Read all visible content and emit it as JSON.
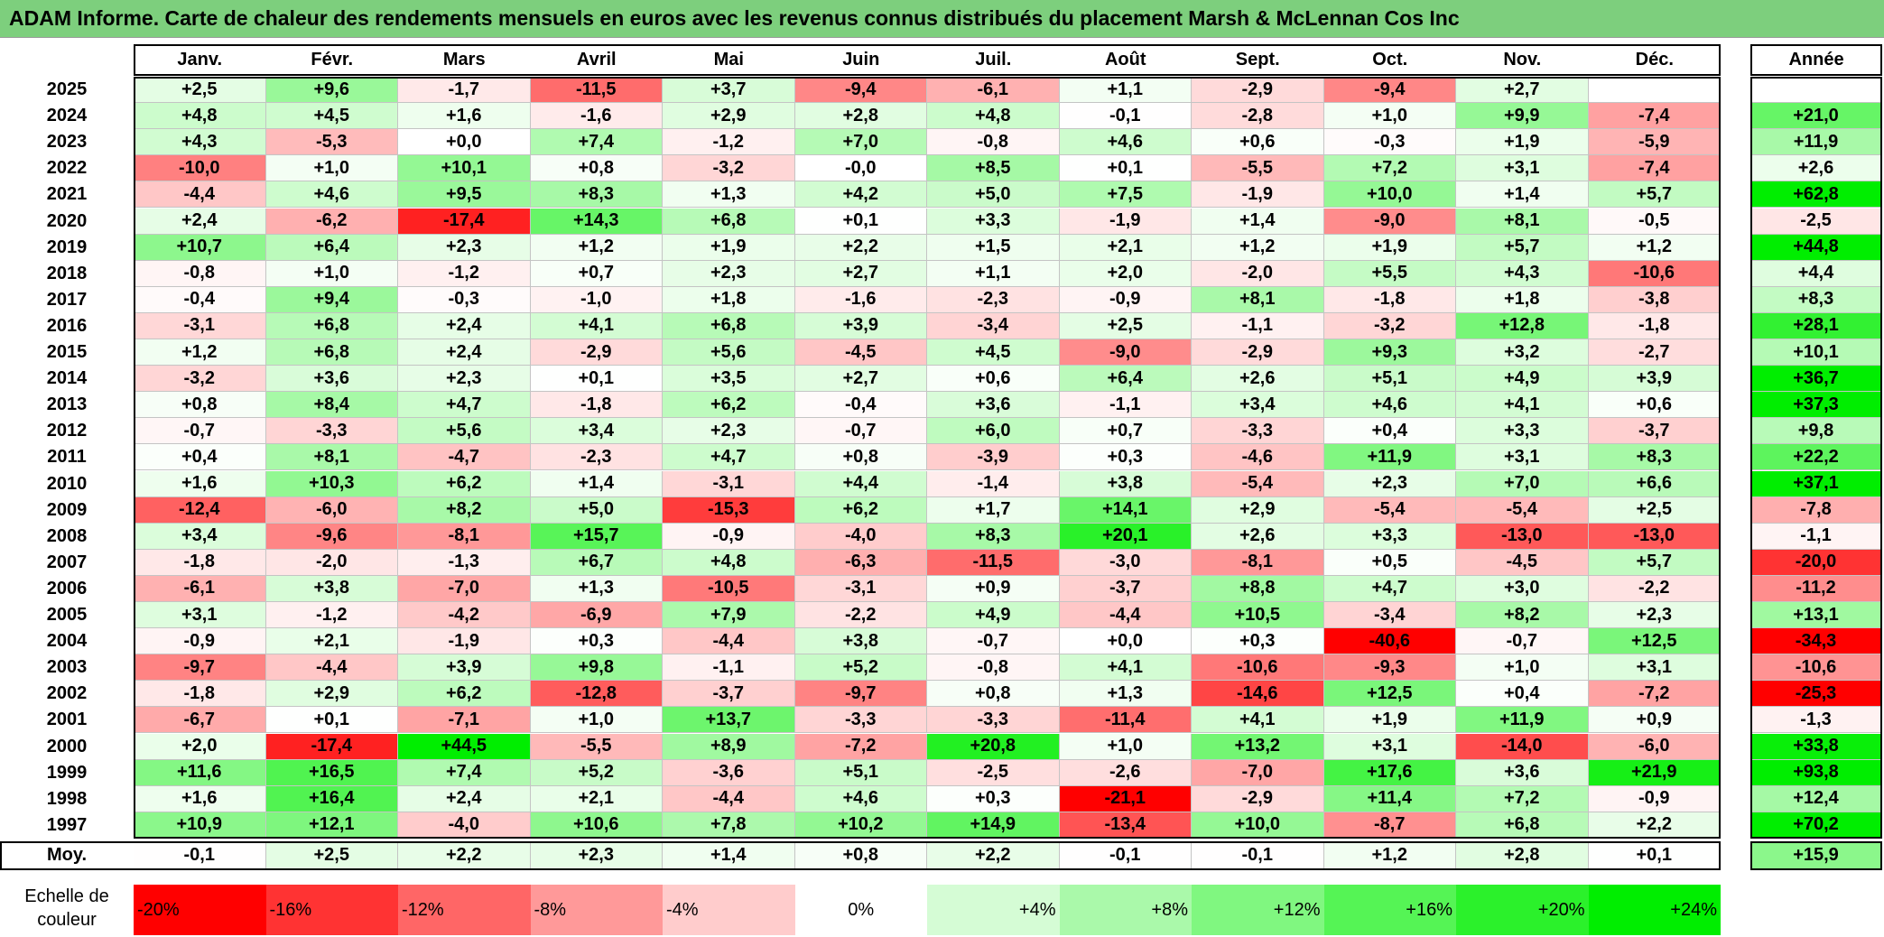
{
  "title": "ADAM Informe. Carte de chaleur des rendements mensuels en euros avec les revenus connus distribués du placement Marsh & McLennan Cos Inc",
  "chart_data": {
    "type": "heatmap",
    "months": [
      "Janv.",
      "Févr.",
      "Mars",
      "Avril",
      "Mai",
      "Juin",
      "Juil.",
      "Août",
      "Sept.",
      "Oct.",
      "Nov.",
      "Déc."
    ],
    "annual_header": "Année",
    "rows": [
      {
        "year": "2025",
        "values": [
          "+2,5",
          "+9,6",
          "-1,7",
          "-11,5",
          "+3,7",
          "-9,4",
          "-6,1",
          "+1,1",
          "-2,9",
          "-9,4",
          "+2,7",
          ""
        ],
        "annual": ""
      },
      {
        "year": "2024",
        "values": [
          "+4,8",
          "+4,5",
          "+1,6",
          "-1,6",
          "+2,9",
          "+2,8",
          "+4,8",
          "-0,1",
          "-2,8",
          "+1,0",
          "+9,9",
          "-7,4"
        ],
        "annual": "+21,0"
      },
      {
        "year": "2023",
        "values": [
          "+4,3",
          "-5,3",
          "+0,0",
          "+7,4",
          "-1,2",
          "+7,0",
          "-0,8",
          "+4,6",
          "+0,6",
          "-0,3",
          "+1,9",
          "-5,9"
        ],
        "annual": "+11,9"
      },
      {
        "year": "2022",
        "values": [
          "-10,0",
          "+1,0",
          "+10,1",
          "+0,8",
          "-3,2",
          "-0,0",
          "+8,5",
          "+0,1",
          "-5,5",
          "+7,2",
          "+3,1",
          "-7,4"
        ],
        "annual": "+2,6"
      },
      {
        "year": "2021",
        "values": [
          "-4,4",
          "+4,6",
          "+9,5",
          "+8,3",
          "+1,3",
          "+4,2",
          "+5,0",
          "+7,5",
          "-1,9",
          "+10,0",
          "+1,4",
          "+5,7"
        ],
        "annual": "+62,8"
      },
      {
        "year": "2020",
        "values": [
          "+2,4",
          "-6,2",
          "-17,4",
          "+14,3",
          "+6,8",
          "+0,1",
          "+3,3",
          "-1,9",
          "+1,4",
          "-9,0",
          "+8,1",
          "-0,5"
        ],
        "annual": "-2,5"
      },
      {
        "year": "2019",
        "values": [
          "+10,7",
          "+6,4",
          "+2,3",
          "+1,2",
          "+1,9",
          "+2,2",
          "+1,5",
          "+2,1",
          "+1,2",
          "+1,9",
          "+5,7",
          "+1,2"
        ],
        "annual": "+44,8"
      },
      {
        "year": "2018",
        "values": [
          "-0,8",
          "+1,0",
          "-1,2",
          "+0,7",
          "+2,3",
          "+2,7",
          "+1,1",
          "+2,0",
          "-2,0",
          "+5,5",
          "+4,3",
          "-10,6"
        ],
        "annual": "+4,4"
      },
      {
        "year": "2017",
        "values": [
          "-0,4",
          "+9,4",
          "-0,3",
          "-1,0",
          "+1,8",
          "-1,6",
          "-2,3",
          "-0,9",
          "+8,1",
          "-1,8",
          "+1,8",
          "-3,8"
        ],
        "annual": "+8,3"
      },
      {
        "year": "2016",
        "values": [
          "-3,1",
          "+6,8",
          "+2,4",
          "+4,1",
          "+6,8",
          "+3,9",
          "-3,4",
          "+2,5",
          "-1,1",
          "-3,2",
          "+12,8",
          "-1,8"
        ],
        "annual": "+28,1"
      },
      {
        "year": "2015",
        "values": [
          "+1,2",
          "+6,8",
          "+2,4",
          "-2,9",
          "+5,6",
          "-4,5",
          "+4,5",
          "-9,0",
          "-2,9",
          "+9,3",
          "+3,2",
          "-2,7"
        ],
        "annual": "+10,1"
      },
      {
        "year": "2014",
        "values": [
          "-3,2",
          "+3,6",
          "+2,3",
          "+0,1",
          "+3,5",
          "+2,7",
          "+0,6",
          "+6,4",
          "+2,6",
          "+5,1",
          "+4,9",
          "+3,9"
        ],
        "annual": "+36,7"
      },
      {
        "year": "2013",
        "values": [
          "+0,8",
          "+8,4",
          "+4,7",
          "-1,8",
          "+6,2",
          "-0,4",
          "+3,6",
          "-1,1",
          "+3,4",
          "+4,6",
          "+4,1",
          "+0,6"
        ],
        "annual": "+37,3"
      },
      {
        "year": "2012",
        "values": [
          "-0,7",
          "-3,3",
          "+5,6",
          "+3,4",
          "+2,3",
          "-0,7",
          "+6,0",
          "+0,7",
          "-3,3",
          "+0,4",
          "+3,3",
          "-3,7"
        ],
        "annual": "+9,8"
      },
      {
        "year": "2011",
        "values": [
          "+0,4",
          "+8,1",
          "-4,7",
          "-2,3",
          "+4,7",
          "+0,8",
          "-3,9",
          "+0,3",
          "-4,6",
          "+11,9",
          "+3,1",
          "+8,3"
        ],
        "annual": "+22,2"
      },
      {
        "year": "2010",
        "values": [
          "+1,6",
          "+10,3",
          "+6,2",
          "+1,4",
          "-3,1",
          "+4,4",
          "-1,4",
          "+3,8",
          "-5,4",
          "+2,3",
          "+7,0",
          "+6,6"
        ],
        "annual": "+37,1"
      },
      {
        "year": "2009",
        "values": [
          "-12,4",
          "-6,0",
          "+8,2",
          "+5,0",
          "-15,3",
          "+6,2",
          "+1,7",
          "+14,1",
          "+2,9",
          "-5,4",
          "-5,4",
          "+2,5"
        ],
        "annual": "-7,8"
      },
      {
        "year": "2008",
        "values": [
          "+3,4",
          "-9,6",
          "-8,1",
          "+15,7",
          "-0,9",
          "-4,0",
          "+8,3",
          "+20,1",
          "+2,6",
          "+3,3",
          "-13,0",
          "-13,0"
        ],
        "annual": "-1,1"
      },
      {
        "year": "2007",
        "values": [
          "-1,8",
          "-2,0",
          "-1,3",
          "+6,7",
          "+4,8",
          "-6,3",
          "-11,5",
          "-3,0",
          "-8,1",
          "+0,5",
          "-4,5",
          "+5,7"
        ],
        "annual": "-20,0"
      },
      {
        "year": "2006",
        "values": [
          "-6,1",
          "+3,8",
          "-7,0",
          "+1,3",
          "-10,5",
          "-3,1",
          "+0,9",
          "-3,7",
          "+8,8",
          "+4,7",
          "+3,0",
          "-2,2"
        ],
        "annual": "-11,2"
      },
      {
        "year": "2005",
        "values": [
          "+3,1",
          "-1,2",
          "-4,2",
          "-6,9",
          "+7,9",
          "-2,2",
          "+4,9",
          "-4,4",
          "+10,5",
          "-3,4",
          "+8,2",
          "+2,3"
        ],
        "annual": "+13,1"
      },
      {
        "year": "2004",
        "values": [
          "-0,9",
          "+2,1",
          "-1,9",
          "+0,3",
          "-4,4",
          "+3,8",
          "-0,7",
          "+0,0",
          "+0,3",
          "-40,6",
          "-0,7",
          "+12,5"
        ],
        "annual": "-34,3"
      },
      {
        "year": "2003",
        "values": [
          "-9,7",
          "-4,4",
          "+3,9",
          "+9,8",
          "-1,1",
          "+5,2",
          "-0,8",
          "+4,1",
          "-10,6",
          "-9,3",
          "+1,0",
          "+3,1"
        ],
        "annual": "-10,6"
      },
      {
        "year": "2002",
        "values": [
          "-1,8",
          "+2,9",
          "+6,2",
          "-12,8",
          "-3,7",
          "-9,7",
          "+0,8",
          "+1,3",
          "-14,6",
          "+12,5",
          "+0,4",
          "-7,2"
        ],
        "annual": "-25,3"
      },
      {
        "year": "2001",
        "values": [
          "-6,7",
          "+0,1",
          "-7,1",
          "+1,0",
          "+13,7",
          "-3,3",
          "-3,3",
          "-11,4",
          "+4,1",
          "+1,9",
          "+11,9",
          "+0,9"
        ],
        "annual": "-1,3"
      },
      {
        "year": "2000",
        "values": [
          "+2,0",
          "-17,4",
          "+44,5",
          "-5,5",
          "+8,9",
          "-7,2",
          "+20,8",
          "+1,0",
          "+13,2",
          "+3,1",
          "-14,0",
          "-6,0"
        ],
        "annual": "+33,8"
      },
      {
        "year": "1999",
        "values": [
          "+11,6",
          "+16,5",
          "+7,4",
          "+5,2",
          "-3,6",
          "+5,1",
          "-2,5",
          "-2,6",
          "-7,0",
          "+17,6",
          "+3,6",
          "+21,9"
        ],
        "annual": "+93,8"
      },
      {
        "year": "1998",
        "values": [
          "+1,6",
          "+16,4",
          "+2,4",
          "+2,1",
          "-4,4",
          "+4,6",
          "+0,3",
          "-21,1",
          "-2,9",
          "+11,4",
          "+7,2",
          "-0,9"
        ],
        "annual": "+12,4"
      },
      {
        "year": "1997",
        "values": [
          "+10,9",
          "+12,1",
          "-4,0",
          "+10,6",
          "+7,8",
          "+10,2",
          "+14,9",
          "-13,4",
          "+10,0",
          "-8,7",
          "+6,8",
          "+2,2"
        ],
        "annual": "+70,2"
      }
    ],
    "average": {
      "label": "Moy.",
      "values": [
        "-0,1",
        "+2,5",
        "+2,2",
        "+2,3",
        "+1,4",
        "+0,8",
        "+2,2",
        "-0,1",
        "-0,1",
        "+1,2",
        "+2,8",
        "+0,1"
      ],
      "annual": "+15,9"
    },
    "color_scale": {
      "label": "Echelle de couleur",
      "stops": [
        "-20%",
        "-16%",
        "-12%",
        "-8%",
        "-4%",
        "0%",
        "+4%",
        "+8%",
        "+12%",
        "+16%",
        "+20%",
        "+24%"
      ],
      "negative_color": "#ff0000",
      "neutral_color": "#ffffff",
      "positive_color": "#00ee00"
    }
  }
}
